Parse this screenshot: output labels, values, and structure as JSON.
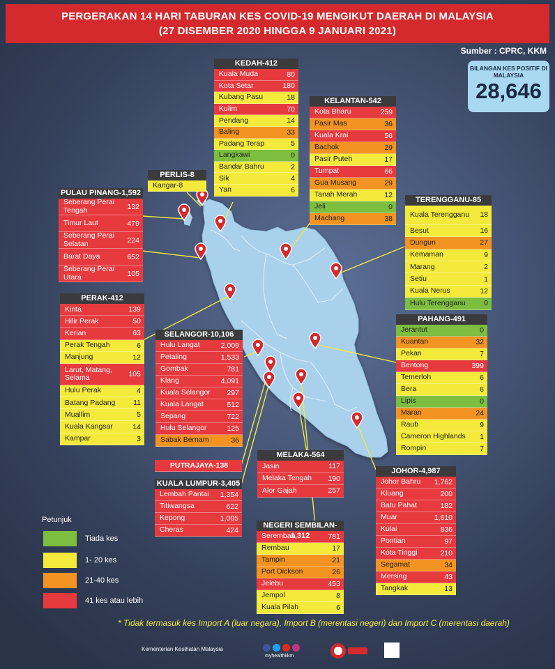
{
  "header": {
    "title_line1": "PERGERAKAN 14 HARI TABURAN KES COVID-19 MENGIKUT DAERAH DI MALAYSIA",
    "title_line2": "(27 DISEMBER 2020 HINGGA 9 JANUARI 2021)",
    "source": "Sumber : CPRC, KKM"
  },
  "total": {
    "label": "BILANGAN KES POSITIF DI MALAYSIA",
    "value": "28,646"
  },
  "colors": {
    "red": "#e63a3f",
    "yellow": "#f3ea3c",
    "orange": "#f39422",
    "green": "#7dbd3f",
    "banner": "#d42a2e",
    "map_land": "#a9d1ec"
  },
  "states": {
    "kedah": {
      "title": "KEDAH-412",
      "rows": [
        {
          "name": "Kuala Muda",
          "value": "80",
          "level": "red"
        },
        {
          "name": "Kota Setar",
          "value": "180",
          "level": "red"
        },
        {
          "name": "Kubang Pasu",
          "value": "18",
          "level": "yel"
        },
        {
          "name": "Kulim",
          "value": "70",
          "level": "red"
        },
        {
          "name": "Pendang",
          "value": "14",
          "level": "yel"
        },
        {
          "name": "Baling",
          "value": "33",
          "level": "org"
        },
        {
          "name": "Padang Terap",
          "value": "5",
          "level": "yel"
        },
        {
          "name": "Langkawi",
          "value": "0",
          "level": "grn"
        },
        {
          "name": "Bandar Bahru",
          "value": "2",
          "level": "yel"
        },
        {
          "name": "Sik",
          "value": "4",
          "level": "yel"
        },
        {
          "name": "Yan",
          "value": "6",
          "level": "yel"
        }
      ]
    },
    "kelantan": {
      "title": "KELANTAN-542",
      "rows": [
        {
          "name": "Kota Bharu",
          "value": "259",
          "level": "red"
        },
        {
          "name": "Pasir Mas",
          "value": "36",
          "level": "org"
        },
        {
          "name": "Kuala Krai",
          "value": "56",
          "level": "red"
        },
        {
          "name": "Bachok",
          "value": "29",
          "level": "org"
        },
        {
          "name": "Pasir Puteh",
          "value": "17",
          "level": "yel"
        },
        {
          "name": "Tumpat",
          "value": "66",
          "level": "red"
        },
        {
          "name": "Gua Musang",
          "value": "29",
          "level": "org"
        },
        {
          "name": "Tanah Merah",
          "value": "12",
          "level": "yel"
        },
        {
          "name": "Jeli",
          "value": "0",
          "level": "grn"
        },
        {
          "name": "Machang",
          "value": "38",
          "level": "org"
        }
      ]
    },
    "perlis": {
      "title": "PERLIS-8",
      "rows": [
        {
          "name": "Kangar-8",
          "value": "",
          "level": "yel"
        }
      ]
    },
    "pulau_pinang": {
      "title": "PULAU PINANG-1,592",
      "rows": [
        {
          "name": "Seberang Perai Tengah",
          "value": "132",
          "level": "red"
        },
        {
          "name": "Timur Laut",
          "value": "479",
          "level": "red"
        },
        {
          "name": "Seberang Perai Selatan",
          "value": "224",
          "level": "red"
        },
        {
          "name": "Barat Daya",
          "value": "652",
          "level": "red"
        },
        {
          "name": "Seberang Perai Utara",
          "value": "105",
          "level": "red"
        }
      ]
    },
    "terengganu": {
      "title": "TERENGGANU-85",
      "rows": [
        {
          "name": "Kuala Terengganu",
          "value": "18",
          "level": "yel"
        },
        {
          "name": "Besut",
          "value": "16",
          "level": "yel"
        },
        {
          "name": "Dungun",
          "value": "27",
          "level": "org"
        },
        {
          "name": "Kemaman",
          "value": "9",
          "level": "yel"
        },
        {
          "name": "Marang",
          "value": "2",
          "level": "yel"
        },
        {
          "name": "Setiu",
          "value": "1",
          "level": "yel"
        },
        {
          "name": "Kuala Nerus",
          "value": "12",
          "level": "yel"
        },
        {
          "name": "Hulu Terengganu",
          "value": "0",
          "level": "grn"
        }
      ]
    },
    "perak": {
      "title": "PERAK-412",
      "rows": [
        {
          "name": "Kinta",
          "value": "139",
          "level": "red"
        },
        {
          "name": "Hilir Perak",
          "value": "50",
          "level": "red"
        },
        {
          "name": "Kerian",
          "value": "63",
          "level": "red"
        },
        {
          "name": "Perak Tengah",
          "value": "6",
          "level": "yel"
        },
        {
          "name": "Manjung",
          "value": "12",
          "level": "yel"
        },
        {
          "name": "Larut, Matang, Selama",
          "value": "105",
          "level": "red"
        },
        {
          "name": "Hulu Perak",
          "value": "4",
          "level": "yel"
        },
        {
          "name": "Batang Padang",
          "value": "11",
          "level": "yel"
        },
        {
          "name": "Muallim",
          "value": "5",
          "level": "yel"
        },
        {
          "name": "Kuala Kangsar",
          "value": "14",
          "level": "yel"
        },
        {
          "name": "Kampar",
          "value": "3",
          "level": "yel"
        }
      ]
    },
    "selangor": {
      "title": "SELANGOR-10,106",
      "rows": [
        {
          "name": "Hulu Langat",
          "value": "2,009",
          "level": "red"
        },
        {
          "name": "Petaling",
          "value": "1,533",
          "level": "red"
        },
        {
          "name": "Gombak",
          "value": "781",
          "level": "red"
        },
        {
          "name": "Klang",
          "value": "4,091",
          "level": "red"
        },
        {
          "name": "Kuala Selangor",
          "value": "297",
          "level": "red"
        },
        {
          "name": "Kuala Langat",
          "value": "512",
          "level": "red"
        },
        {
          "name": "Sepang",
          "value": "722",
          "level": "red"
        },
        {
          "name": "Hulu Selangor",
          "value": "125",
          "level": "red"
        },
        {
          "name": "Sabak Bernam",
          "value": "36",
          "level": "org"
        }
      ]
    },
    "pahang": {
      "title": "PAHANG-491",
      "rows": [
        {
          "name": "Jerantut",
          "value": "0",
          "level": "grn"
        },
        {
          "name": "Kuantan",
          "value": "32",
          "level": "org"
        },
        {
          "name": "Pekan",
          "value": "7",
          "level": "yel"
        },
        {
          "name": "Bentong",
          "value": "399",
          "level": "red"
        },
        {
          "name": "Temerloh",
          "value": "6",
          "level": "yel"
        },
        {
          "name": "Bera",
          "value": "6",
          "level": "yel"
        },
        {
          "name": "Lipis",
          "value": "0",
          "level": "grn"
        },
        {
          "name": "Maran",
          "value": "24",
          "level": "org"
        },
        {
          "name": "Raub",
          "value": "9",
          "level": "yel"
        },
        {
          "name": "Cameron Highlands",
          "value": "1",
          "level": "yel"
        },
        {
          "name": "Rompin",
          "value": "7",
          "level": "yel"
        }
      ]
    },
    "putrajaya": {
      "title": "PUTRAJAYA-138"
    },
    "kuala_lumpur": {
      "title": "KUALA LUMPUR-3,405",
      "rows": [
        {
          "name": "Lembah Pantai",
          "value": "1,354",
          "level": "red"
        },
        {
          "name": "Titiwangsa",
          "value": "622",
          "level": "red"
        },
        {
          "name": "Kepong",
          "value": "1,005",
          "level": "red"
        },
        {
          "name": "Cheras",
          "value": "424",
          "level": "red"
        }
      ]
    },
    "melaka": {
      "title": "MELAKA-564",
      "rows": [
        {
          "name": "Jasin",
          "value": "117",
          "level": "red"
        },
        {
          "name": "Melaka Tengah",
          "value": "190",
          "level": "red"
        },
        {
          "name": "Alor Gajah",
          "value": "257",
          "level": "red"
        }
      ]
    },
    "negeri_sembilan": {
      "title": "NEGERI SEMBILAN-1,312",
      "rows": [
        {
          "name": "Seremban",
          "value": "781",
          "level": "red"
        },
        {
          "name": "Rembau",
          "value": "17",
          "level": "yel"
        },
        {
          "name": "Tampin",
          "value": "21",
          "level": "org"
        },
        {
          "name": "Port Dickson",
          "value": "26",
          "level": "org"
        },
        {
          "name": "Jelebu",
          "value": "453",
          "level": "red"
        },
        {
          "name": "Jempol",
          "value": "8",
          "level": "yel"
        },
        {
          "name": "Kuala Pilah",
          "value": "6",
          "level": "yel"
        }
      ]
    },
    "johor": {
      "title": "JOHOR-4,987",
      "rows": [
        {
          "name": "Johor Bahru",
          "value": "1,762",
          "level": "red"
        },
        {
          "name": "Kluang",
          "value": "200",
          "level": "red"
        },
        {
          "name": "Batu Pahat",
          "value": "182",
          "level": "red"
        },
        {
          "name": "Muar",
          "value": "1,610",
          "level": "red"
        },
        {
          "name": "Kulai",
          "value": "836",
          "level": "red"
        },
        {
          "name": "Pontian",
          "value": "97",
          "level": "red"
        },
        {
          "name": "Kota Tinggi",
          "value": "210",
          "level": "red"
        },
        {
          "name": "Segamat",
          "value": "34",
          "level": "org"
        },
        {
          "name": "Mersing",
          "value": "43",
          "level": "red"
        },
        {
          "name": "Tangkak",
          "value": "13",
          "level": "yel"
        }
      ]
    }
  },
  "legend": {
    "title": "Petunjuk",
    "items": [
      {
        "label": "Tiada kes",
        "level": "grn"
      },
      {
        "label": "1- 20 kes",
        "level": "yel"
      },
      {
        "label": "21-40 kes",
        "level": "org"
      },
      {
        "label": "41 kes atau lebih",
        "level": "red"
      }
    ]
  },
  "note": "* Tidak termasuk kes Import A (luar negara),  Import B (merentasi negeri) dan Import C (merentasi daerah)",
  "footer": {
    "ministry": "Kementerian Kesihatan Malaysia",
    "handle": "myhealthkkm"
  }
}
